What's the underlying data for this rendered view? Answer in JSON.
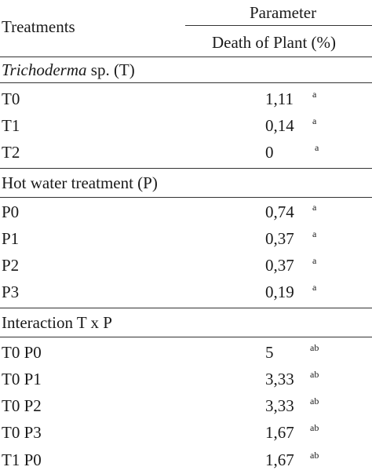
{
  "header": {
    "treatments": "Treatments",
    "parameter": "Parameter",
    "column": "Death of Plant (%)"
  },
  "sections": [
    {
      "title_italic": "Trichoderma",
      "title_rest": " sp. (T)",
      "rows": [
        {
          "label": "T0",
          "value": "1,11",
          "sup": "a"
        },
        {
          "label": "T1",
          "value": "0,14",
          "sup": "a"
        },
        {
          "label": "T2",
          "value": "0",
          "sup": "a"
        }
      ]
    },
    {
      "title": "Hot water treatment (P)",
      "rows": [
        {
          "label": "P0",
          "value": "0,74",
          "sup": "a"
        },
        {
          "label": "P1",
          "value": "0,37",
          "sup": "a"
        },
        {
          "label": "P2",
          "value": "0,37",
          "sup": "a"
        },
        {
          "label": "P3",
          "value": "0,19",
          "sup": "a"
        }
      ]
    },
    {
      "title": "Interaction T x P",
      "rows": [
        {
          "label": "T0 P0",
          "value": "5",
          "sup": "ab"
        },
        {
          "label": "T0 P1",
          "value": "3,33",
          "sup": "ab"
        },
        {
          "label": "T0 P2",
          "value": "3,33",
          "sup": "ab"
        },
        {
          "label": "T0 P3",
          "value": "1,67",
          "sup": "ab"
        },
        {
          "label": "T1 P0",
          "value": "1,67",
          "sup": "ab"
        }
      ]
    }
  ]
}
